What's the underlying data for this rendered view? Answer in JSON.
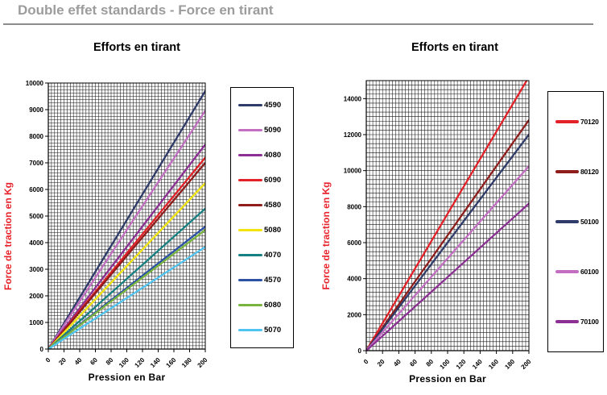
{
  "header": {
    "title": "Double effet standards - Force en tirant"
  },
  "axis_label_color": "#e8232b",
  "chart_data": [
    {
      "type": "line",
      "title": "Efforts en tirant",
      "xlabel": "Pression en Bar",
      "ylabel": "Force de traction en Kg",
      "xlim": [
        0,
        200
      ],
      "ylim": [
        0,
        10000
      ],
      "x_tick_labels": [
        0,
        20,
        40,
        60,
        80,
        100,
        120,
        140,
        160,
        180,
        200
      ],
      "y_tick_labels": [
        0,
        1000,
        2000,
        3000,
        4000,
        5000,
        6000,
        7000,
        8000,
        9000,
        10000
      ],
      "x_minor_step": 4,
      "y_minor_step": 125,
      "grid": "on",
      "legend_position": "right",
      "x": [
        0,
        200
      ],
      "series": [
        {
          "name": "4590",
          "color": "#2f3b69",
          "values": [
            0,
            9700
          ]
        },
        {
          "name": "5090",
          "color": "#c26fc2",
          "values": [
            0,
            8960
          ]
        },
        {
          "name": "4080",
          "color": "#8c3093",
          "values": [
            0,
            7690
          ]
        },
        {
          "name": "6090",
          "color": "#e22128",
          "values": [
            0,
            7200
          ]
        },
        {
          "name": "4580",
          "color": "#8e1d1b",
          "values": [
            0,
            7000
          ]
        },
        {
          "name": "5080",
          "color": "#f2e50f",
          "values": [
            0,
            6240
          ]
        },
        {
          "name": "4070",
          "color": "#178082",
          "values": [
            0,
            5280
          ]
        },
        {
          "name": "4570",
          "color": "#2c51a5",
          "values": [
            0,
            4600
          ]
        },
        {
          "name": "6080",
          "color": "#79b43f",
          "values": [
            0,
            4480
          ]
        },
        {
          "name": "5070",
          "color": "#4fc4f0",
          "values": [
            0,
            3840
          ]
        }
      ]
    },
    {
      "type": "line",
      "title": "Efforts en tirant",
      "xlabel": "Pression en Bar",
      "ylabel": "Force de traction en Kg",
      "xlim": [
        0,
        200
      ],
      "ylim": [
        0,
        15000
      ],
      "x_tick_labels": [
        0,
        20,
        40,
        60,
        80,
        100,
        120,
        140,
        160,
        180,
        200
      ],
      "y_tick_labels": [
        0,
        2000,
        4000,
        6000,
        8000,
        10000,
        12000,
        14000
      ],
      "x_minor_step": 4,
      "y_minor_step": 250,
      "grid": "on",
      "legend_position": "right",
      "x": [
        0,
        200
      ],
      "series": [
        {
          "name": "70120",
          "color": "#e22128",
          "values": [
            0,
            15210
          ]
        },
        {
          "name": "80120",
          "color": "#8e1d1b",
          "values": [
            0,
            12810
          ]
        },
        {
          "name": "50100",
          "color": "#2f3b69",
          "values": [
            0,
            12010
          ]
        },
        {
          "name": "60100",
          "color": "#c26fc2",
          "values": [
            0,
            10250
          ]
        },
        {
          "name": "70100",
          "color": "#8c3093",
          "values": [
            0,
            8170
          ]
        }
      ]
    }
  ]
}
